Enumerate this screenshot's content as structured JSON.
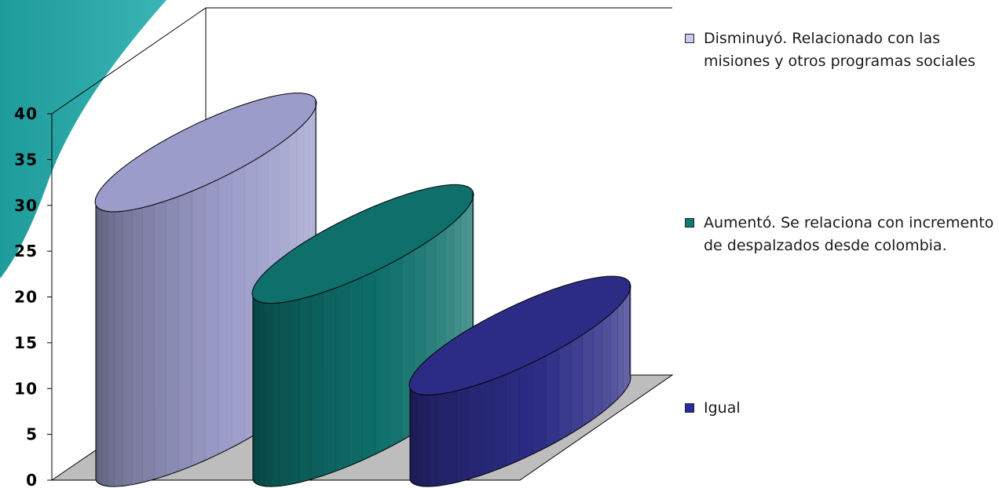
{
  "chart_data": {
    "type": "bar",
    "style": "3d-cylinder",
    "categories": [
      "Disminuyó. Relacionado con las misiones y otros programas sociales",
      "Aumentó. Se relaciona con incremento de despalzados desde colombia.",
      "Igual"
    ],
    "values": [
      30,
      20,
      10
    ],
    "colors": [
      "#9b9cc9",
      "#0e6f6b",
      "#2c2c86"
    ],
    "title": "",
    "xlabel": "",
    "ylabel": "",
    "ylim": [
      0,
      40
    ],
    "yticks": [
      "0",
      "5",
      "10",
      "15",
      "20",
      "25",
      "30",
      "35",
      "40"
    ],
    "grid": false,
    "legend": {
      "position": "right",
      "entries": [
        "Disminuyó. Relacionado con las misiones y otros programas sociales",
        "Aumentó. Se relaciona con incremento de despalzados desde colombia.",
        "Igual"
      ]
    }
  },
  "decoration": {
    "corner_color": "#2aa6a6"
  }
}
